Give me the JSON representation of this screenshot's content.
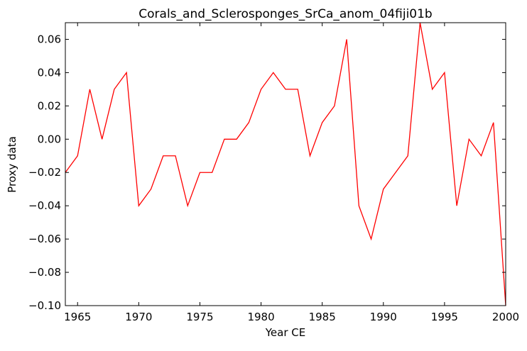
{
  "chart_data": {
    "type": "line",
    "title": "Corals_and_Sclerosponges_SrCa_anom_04fiji01b",
    "xlabel": "Year CE",
    "ylabel": "Proxy data",
    "xlim": [
      1964,
      2000
    ],
    "ylim": [
      -0.1,
      0.07
    ],
    "xticks": [
      1965,
      1970,
      1975,
      1980,
      1985,
      1990,
      1995,
      2000
    ],
    "xtick_labels": [
      "1965",
      "1970",
      "1975",
      "1980",
      "1985",
      "1990",
      "1995",
      "2000"
    ],
    "yticks": [
      0.06,
      0.04,
      0.02,
      0.0,
      -0.02,
      -0.04,
      -0.06,
      -0.08,
      -0.1
    ],
    "ytick_labels": [
      "0.06",
      "0.04",
      "0.02",
      "0.00",
      "−0.02",
      "−0.04",
      "−0.06",
      "−0.08",
      "−0.10"
    ],
    "grid": false,
    "line_color": "#ff0000",
    "series": [
      {
        "x": [
          1964,
          1965,
          1966,
          1967,
          1968,
          1969,
          1970,
          1971,
          1972,
          1973,
          1974,
          1975,
          1976,
          1977,
          1978,
          1979,
          1980,
          1981,
          1982,
          1983,
          1984,
          1985,
          1986,
          1987,
          1988,
          1989,
          1990,
          1991,
          1992,
          1993,
          1994,
          1995,
          1996,
          1997,
          1998,
          1999,
          2000
        ],
        "values": [
          -0.02,
          -0.01,
          0.03,
          0.0,
          0.03,
          0.04,
          -0.04,
          -0.03,
          -0.01,
          -0.01,
          -0.04,
          -0.02,
          -0.02,
          0.0,
          0.0,
          0.01,
          0.03,
          0.04,
          0.03,
          0.03,
          -0.01,
          0.01,
          0.02,
          0.06,
          -0.04,
          -0.06,
          -0.03,
          -0.02,
          -0.01,
          0.07,
          0.03,
          0.04,
          -0.04,
          0.0,
          -0.01,
          0.01,
          -0.1
        ]
      }
    ]
  }
}
